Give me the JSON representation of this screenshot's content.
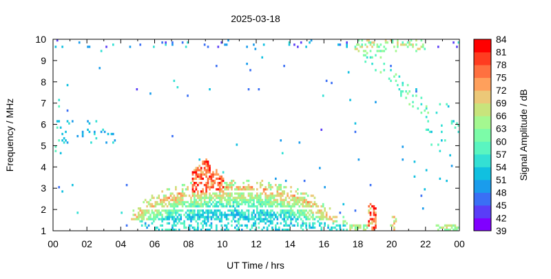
{
  "chart_data": {
    "type": "heatmap",
    "title": "2025-03-18",
    "xlabel": "UT Time / hrs",
    "ylabel": "Frequency / MHz",
    "xlim": [
      0,
      24
    ],
    "ylim": [
      1,
      10
    ],
    "x_tick_labels": [
      "00",
      "02",
      "04",
      "06",
      "08",
      "10",
      "12",
      "14",
      "16",
      "18",
      "20",
      "22",
      "00"
    ],
    "y_tick_labels": [
      "1",
      "2",
      "3",
      "4",
      "5",
      "6",
      "7",
      "8",
      "9",
      "10"
    ],
    "grid": false,
    "colorbar": {
      "label": "Signal Amplitude / dB",
      "range": [
        39,
        84
      ],
      "tick_labels": [
        "39",
        "42",
        "45",
        "48",
        "51",
        "54",
        "57",
        "60",
        "63",
        "66",
        "69",
        "72",
        "75",
        "78",
        "81",
        "84"
      ],
      "colors": [
        "#8000ff",
        "#5a3df7",
        "#3a6ff5",
        "#1a9cec",
        "#10c0e0",
        "#33e0d4",
        "#5af5c0",
        "#7cfca8",
        "#a4f890",
        "#c8e47c",
        "#ecc878",
        "#ffa05c",
        "#ff7040",
        "#ff3c20",
        "#ff0000"
      ]
    }
  }
}
